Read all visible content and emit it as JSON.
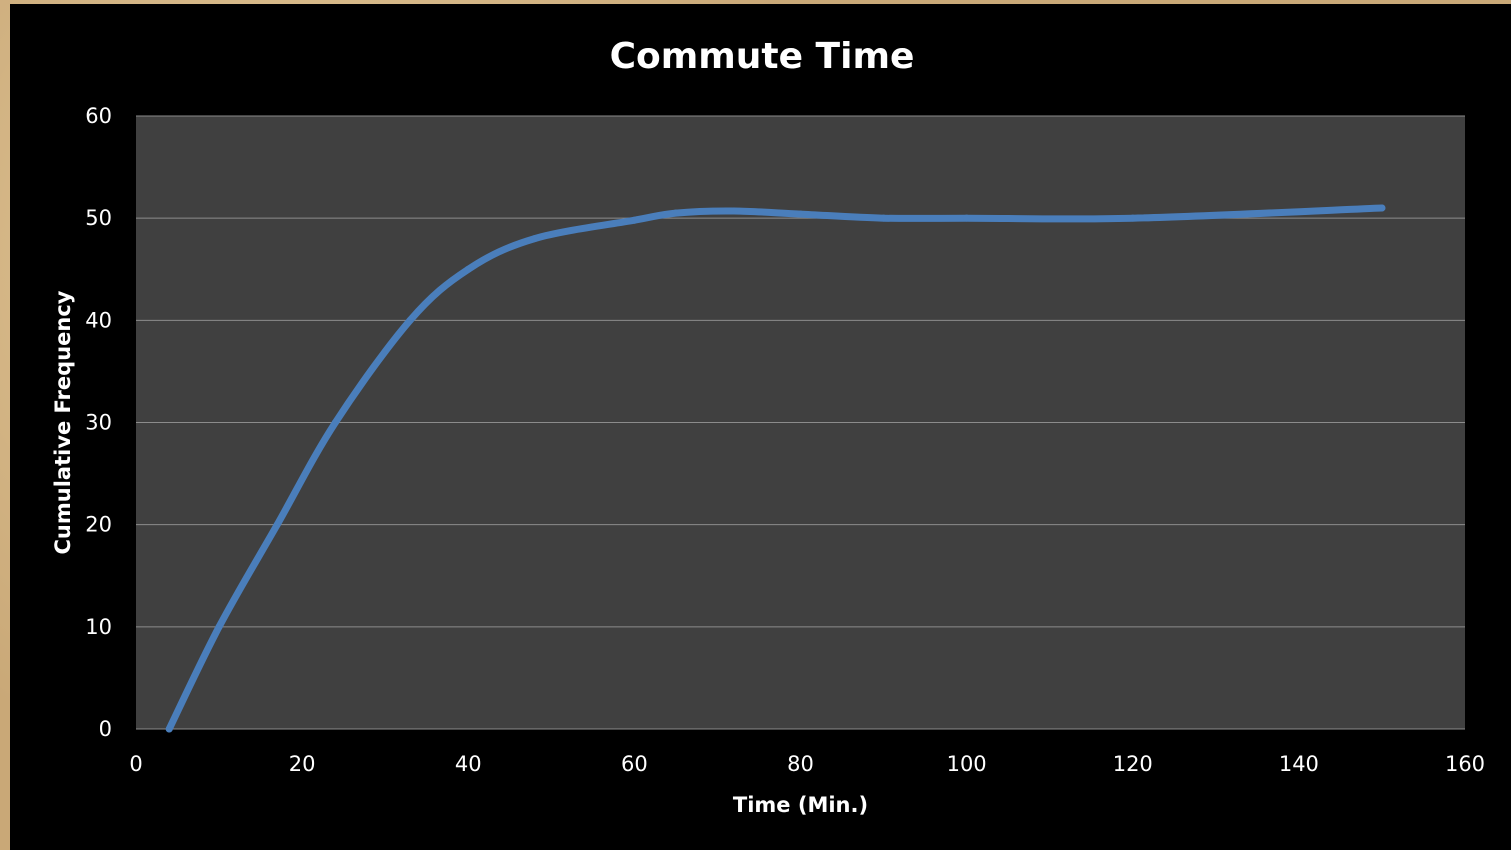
{
  "chart_data": {
    "type": "line",
    "title": "Commute Time",
    "xlabel": "Time (Min.)",
    "ylabel": "Cumulative Frequency",
    "xlim": [
      0,
      160
    ],
    "ylim": [
      0,
      60
    ],
    "xticks": [
      0,
      20,
      40,
      60,
      80,
      100,
      120,
      140,
      160
    ],
    "yticks": [
      0,
      10,
      20,
      30,
      40,
      50,
      60
    ],
    "xtick_labels": [
      "0",
      "20",
      "40",
      "60",
      "80",
      "100",
      "120",
      "140",
      "160"
    ],
    "ytick_labels": [
      "0",
      "10",
      "20",
      "30",
      "40",
      "50",
      "60"
    ],
    "grid": "horizontal",
    "legend": "none",
    "smooth": true,
    "series": [
      {
        "color": "#4a7ebb",
        "x": [
          4,
          10,
          17,
          24,
          33,
          40,
          48,
          60,
          65,
          72,
          80,
          90,
          100,
          120,
          150
        ],
        "y": [
          0,
          10,
          20,
          30,
          40,
          45,
          48,
          49.8,
          50.5,
          50.7,
          50.4,
          50,
          50,
          50,
          51
        ]
      }
    ],
    "colors": {
      "plot_background": "#404040",
      "chart_background": "#000000",
      "gridline": "#8c8c8c",
      "text": "#ffffff"
    }
  }
}
